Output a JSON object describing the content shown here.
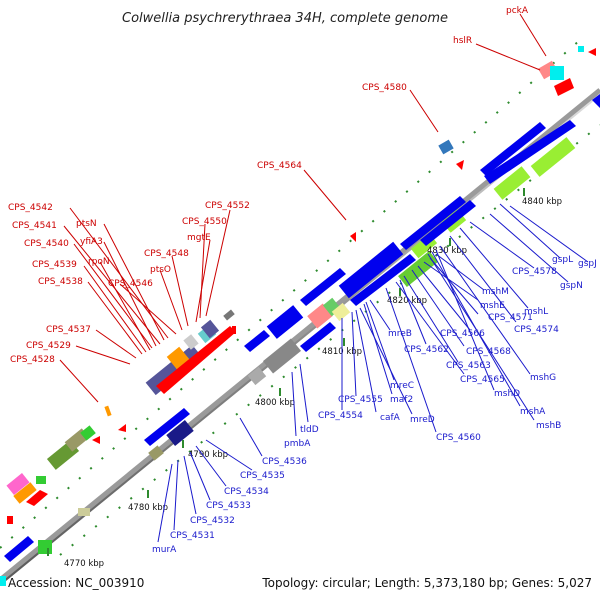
{
  "title": "Colwellia psychrerythraea 34H, complete genome",
  "footer": {
    "accession": "Accession: NC_003910",
    "summary": "Topology: circular; Length: 5,373,180 bp; Genes: 5,027"
  },
  "scale_labels": [
    "4770 kbp",
    "4780 kbp",
    "4790 kbp",
    "4800 kbp",
    "4810 kbp",
    "4820 kbp",
    "4830 kbp",
    "4840 kbp"
  ],
  "labels_red": [
    "pckA",
    "hslR",
    "CPS_4580",
    "CPS_4564",
    "CPS_4552",
    "CPS_4550",
    "mgtE",
    "CPS_4548",
    "ptsO",
    "CPS_4546",
    "CPS_4542",
    "ptsN",
    "CPS_4541",
    "yfiA3",
    "CPS_4540",
    "rpoN",
    "CPS_4539",
    "CPS_4538",
    "CPS_4537",
    "CPS_4529",
    "CPS_4528"
  ],
  "labels_blue": [
    "gspL",
    "gspJ",
    "gspN",
    "CPS_4578",
    "mshL",
    "CPS_4574",
    "mshM",
    "CPS_4571",
    "mshE",
    "CPS_4566",
    "CPS_4568",
    "CPS_4562",
    "CPS_4563",
    "CPS_4565",
    "mshG",
    "mshD",
    "mshA",
    "mshB",
    "mreB",
    "mreC",
    "maf2",
    "mreD",
    "CPS_4555",
    "cafA",
    "CPS_4554",
    "CPS_4560",
    "tldD",
    "pmbA",
    "CPS_4536",
    "CPS_4535",
    "CPS_4534",
    "CPS_4533",
    "CPS_4532",
    "CPS_4531",
    "murA"
  ]
}
